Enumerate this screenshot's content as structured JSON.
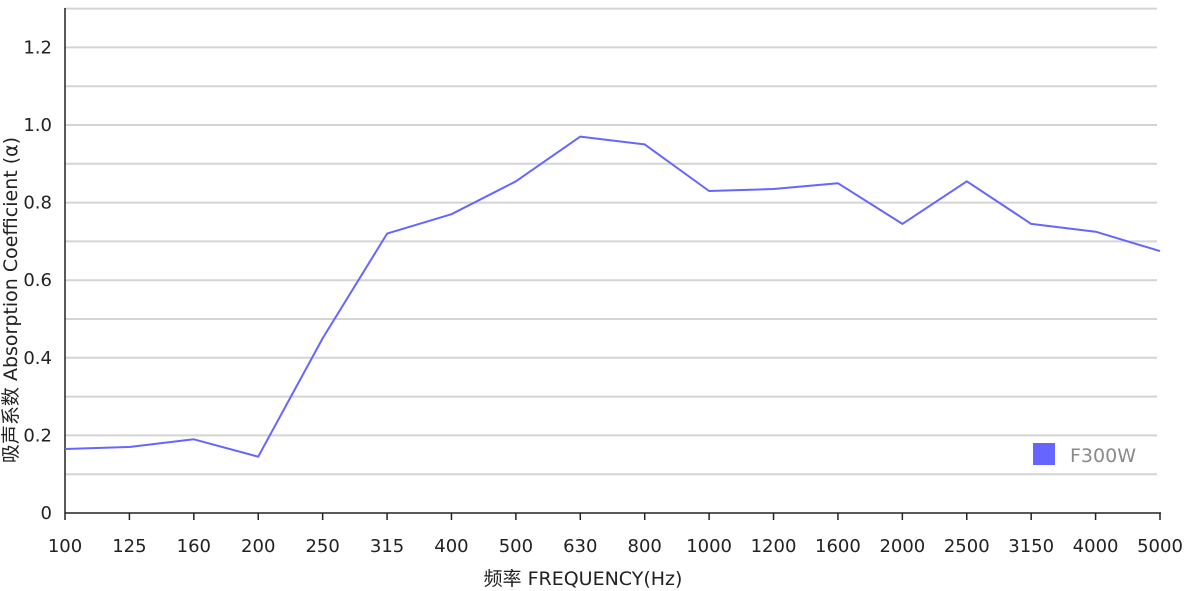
{
  "chart_data": {
    "type": "line",
    "title": "",
    "xlabel": "频率 FREQUENCY(Hz)",
    "ylabel": "吸声系数 Absorption Coefficient (α)",
    "categories": [
      "100",
      "125",
      "160",
      "200",
      "250",
      "315",
      "400",
      "500",
      "630",
      "800",
      "1000",
      "1200",
      "1600",
      "2000",
      "2500",
      "3150",
      "4000",
      "5000"
    ],
    "y_ticks": [
      "0",
      "0.2",
      "0.4",
      "0.6",
      "0.8",
      "1.0",
      "1.2"
    ],
    "ylim": [
      0,
      1.3
    ],
    "grid": true,
    "legend_position": "bottom-right",
    "series": [
      {
        "name": "F300W",
        "color": "#6666ff",
        "x": [
          0,
          1,
          2,
          3,
          4,
          5,
          6,
          7,
          8,
          9,
          10,
          11,
          12,
          13,
          14,
          15,
          16,
          17
        ],
        "values": [
          0.165,
          0.17,
          0.19,
          0.145,
          0.45,
          0.72,
          0.77,
          0.855,
          0.97,
          0.95,
          0.83,
          0.835,
          0.85,
          0.745,
          0.855,
          0.745,
          0.725,
          0.675
        ]
      }
    ]
  }
}
